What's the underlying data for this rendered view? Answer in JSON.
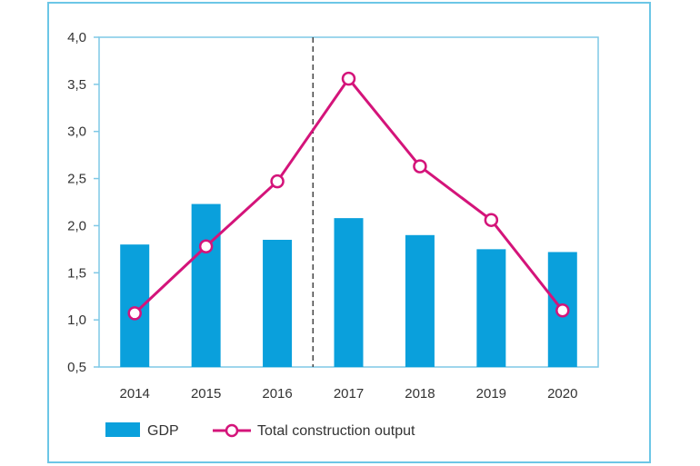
{
  "chart_data": {
    "type": "bar",
    "categories": [
      "2014",
      "2015",
      "2016",
      "2017",
      "2018",
      "2019",
      "2020"
    ],
    "series": [
      {
        "name": "GDP",
        "type": "bar",
        "values": [
          1.8,
          2.23,
          1.85,
          2.08,
          1.9,
          1.75,
          1.72
        ]
      },
      {
        "name": "Total construction output",
        "type": "line",
        "values": [
          1.07,
          1.78,
          2.47,
          3.56,
          2.63,
          2.06,
          1.1
        ]
      }
    ],
    "ylim": [
      0.5,
      4.0
    ],
    "yticks": [
      "4,0",
      "3,5",
      "3,0",
      "2,5",
      "2,0",
      "1,5",
      "1,0",
      "0,5"
    ],
    "ytick_values": [
      4.0,
      3.5,
      3.0,
      2.5,
      2.0,
      1.5,
      1.0,
      0.5
    ],
    "divider_after_category": "2016",
    "grid": false,
    "legend_position": "bottom-left",
    "colors": {
      "bar": "#0aa0dc",
      "line": "#d4147a",
      "marker_fill": "#ffffff",
      "frame": "#6cc6e6",
      "axis": "#7fc8e6"
    }
  }
}
